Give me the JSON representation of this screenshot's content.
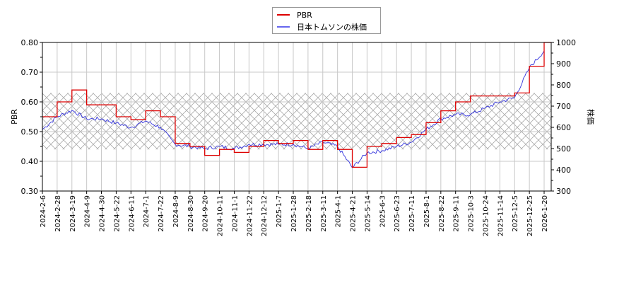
{
  "legend": {
    "items": [
      {
        "label": "PBR",
        "color": "#dd0000"
      },
      {
        "label": "日本トムソンの株価",
        "color": "#3333dd"
      }
    ]
  },
  "axes": {
    "left_title": "PBR",
    "right_title": "株価",
    "left_ticks": [
      "0.80",
      "0.70",
      "0.60",
      "0.50",
      "0.40",
      "0.30"
    ],
    "right_ticks": [
      "1000",
      "900",
      "800",
      "700",
      "600",
      "500",
      "400",
      "300"
    ],
    "x_ticks": [
      "2024-2-6",
      "2024-2-28",
      "2024-3-19",
      "2024-4-9",
      "2024-4-30",
      "2024-5-22",
      "2024-6-11",
      "2024-7-1",
      "2024-7-22",
      "2024-8-9",
      "2024-8-30",
      "2024-9-20",
      "2024-10-11",
      "2024-11-1",
      "2024-11-22",
      "2024-12-12",
      "2025-1-7",
      "2025-1-28",
      "2025-2-18",
      "2025-3-11",
      "2025-4-1",
      "2025-4-21",
      "2025-5-14",
      "2025-6-3",
      "2025-6-23",
      "2025-7-11",
      "2025-8-1",
      "2025-8-22",
      "2025-9-11",
      "2025-10-3",
      "2025-10-24",
      "2025-11-14",
      "2025-12-5",
      "2025-12-25",
      "2026-1-20"
    ]
  },
  "chart_data": {
    "type": "line",
    "title": "",
    "xlabel": "",
    "ylabel": "PBR",
    "y2label": "株価",
    "ylim": [
      0.3,
      0.8
    ],
    "y2lim": [
      300,
      1000
    ],
    "grid": true,
    "legend_position": "top-center",
    "shaded_band_pbr": [
      0.44,
      0.63
    ],
    "categories": [
      "2024-2-6",
      "2024-2-28",
      "2024-3-19",
      "2024-4-9",
      "2024-4-30",
      "2024-5-22",
      "2024-6-11",
      "2024-7-1",
      "2024-7-22",
      "2024-8-9",
      "2024-8-30",
      "2024-9-20",
      "2024-10-11",
      "2024-11-1",
      "2024-11-22",
      "2024-12-12",
      "2025-1-7",
      "2025-1-28",
      "2025-2-18",
      "2025-3-11",
      "2025-4-1",
      "2025-4-21",
      "2025-5-14",
      "2025-6-3",
      "2025-6-23",
      "2025-7-11",
      "2025-8-1",
      "2025-8-22",
      "2025-9-11",
      "2025-10-3",
      "2025-10-24",
      "2025-11-14",
      "2025-12-5",
      "2025-12-25",
      "2026-1-20"
    ],
    "series": [
      {
        "name": "PBR",
        "axis": "left",
        "color": "#dd0000",
        "values": [
          0.55,
          0.6,
          0.64,
          0.59,
          0.59,
          0.55,
          0.54,
          0.57,
          0.55,
          0.46,
          0.45,
          0.42,
          0.44,
          0.43,
          0.45,
          0.47,
          0.46,
          0.47,
          0.44,
          0.47,
          0.44,
          0.38,
          0.45,
          0.46,
          0.48,
          0.49,
          0.53,
          0.57,
          0.6,
          0.62,
          0.62,
          0.62,
          0.63,
          0.72,
          0.8
        ]
      },
      {
        "name": "日本トムソンの株価",
        "axis": "right",
        "color": "#3333dd",
        "values": [
          590,
          650,
          680,
          640,
          640,
          620,
          600,
          630,
          600,
          520,
          510,
          500,
          510,
          500,
          520,
          520,
          520,
          520,
          500,
          530,
          510,
          410,
          480,
          490,
          510,
          530,
          590,
          640,
          660,
          660,
          690,
          720,
          740,
          880,
          960
        ]
      }
    ]
  }
}
